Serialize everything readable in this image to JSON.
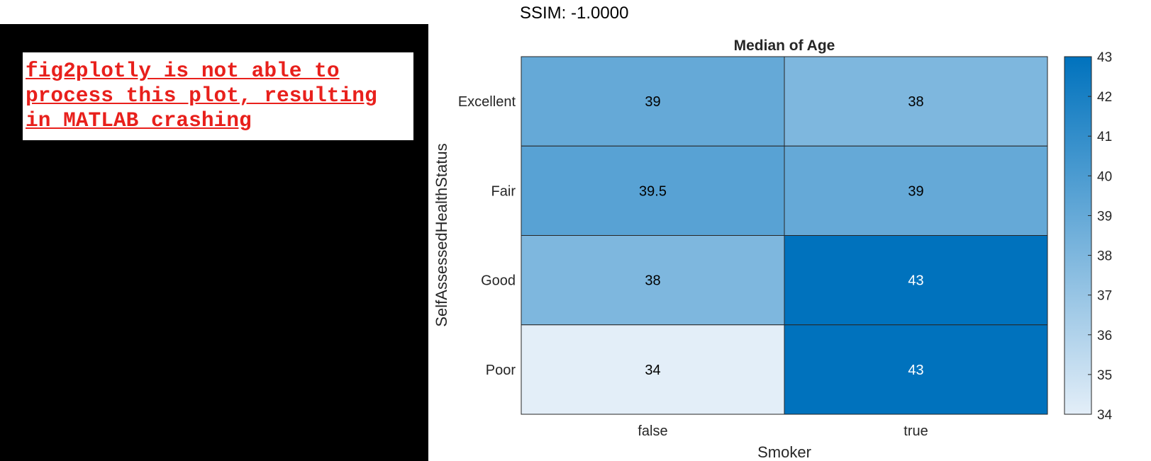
{
  "ssim_label": "SSIM: -1.0000",
  "warning_text": "fig2plotly is not able to\nprocess this plot, resulting\nin MATLAB crashing",
  "colors": {
    "warning_red": "#e8201c",
    "colormap_low": "#e3eef8",
    "colormap_high": "#0072bd",
    "text_dark": "#000000",
    "text_light": "#ffffff"
  },
  "chart_data": {
    "type": "heatmap",
    "title": "Median of Age",
    "xlabel": "Smoker",
    "ylabel": "SelfAssessedHealthStatus",
    "x_categories": [
      "false",
      "true"
    ],
    "y_categories": [
      "Excellent",
      "Fair",
      "Good",
      "Poor"
    ],
    "values": [
      [
        39,
        38
      ],
      [
        39.5,
        39
      ],
      [
        38,
        43
      ],
      [
        34,
        43
      ]
    ],
    "cell_labels": [
      [
        "39",
        "38"
      ],
      [
        "39.5",
        "39"
      ],
      [
        "38",
        "43"
      ],
      [
        "34",
        "43"
      ]
    ],
    "colorbar": {
      "range": [
        34,
        43
      ],
      "ticks": [
        34,
        35,
        36,
        37,
        38,
        39,
        40,
        41,
        42,
        43
      ],
      "position": "right"
    }
  }
}
